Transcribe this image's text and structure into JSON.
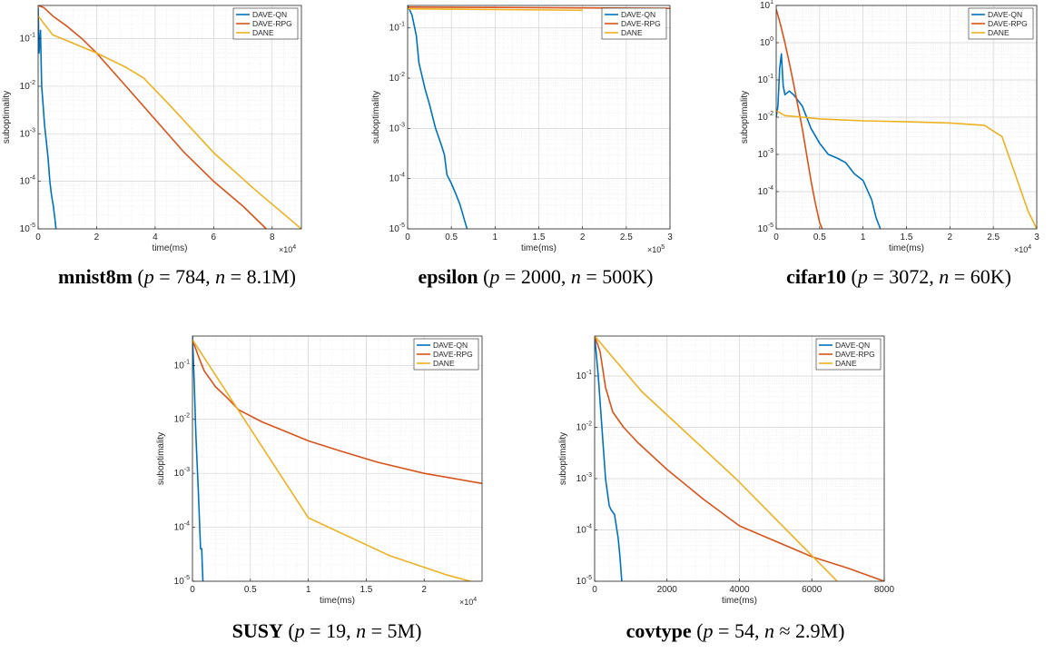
{
  "colors": {
    "DAVE-QN": "#0072BD",
    "DAVE-RPG": "#D95319",
    "DANE": "#EDB120"
  },
  "chart_data": [
    {
      "type": "line",
      "scale": "log-y",
      "dataset": "mnist8m",
      "caption_params": {
        "p": "784",
        "n": "8.1M",
        "rel": "="
      },
      "xlabel": "time(ms)",
      "ylabel": "suboptimality",
      "xlim": [
        0,
        90000
      ],
      "ylim": [
        1e-05,
        0.5
      ],
      "x_multiplier": "×10",
      "x_multiplier_exp": "4",
      "xticks": [
        0,
        20000,
        40000,
        60000,
        80000
      ],
      "xtick_labels": [
        "0",
        "2",
        "4",
        "6",
        "8"
      ],
      "legend": [
        "DAVE-QN",
        "DAVE-RPG",
        "DANE"
      ],
      "legend_position": "top-right",
      "grid": true,
      "series": [
        {
          "name": "DAVE-QN",
          "x": [
            0,
            300,
            800,
            1200,
            1700,
            2200,
            2800,
            3400,
            4000,
            4600,
            5200,
            5800,
            6100
          ],
          "y": [
            0.45,
            0.05,
            0.15,
            0.01,
            0.004,
            0.0015,
            0.0007,
            0.0003,
            0.0001,
            5e-05,
            3e-05,
            1.5e-05,
            1e-05
          ]
        },
        {
          "name": "DAVE-RPG",
          "x": [
            0,
            2000,
            5000,
            10000,
            15000,
            20000,
            30000,
            40000,
            50000,
            60000,
            70000,
            78000
          ],
          "y": [
            0.5,
            0.45,
            0.3,
            0.18,
            0.1,
            0.05,
            0.01,
            0.002,
            0.0004,
            0.0001,
            3e-05,
            1e-05
          ]
        },
        {
          "name": "DANE",
          "x": [
            0,
            1000,
            5000,
            10000,
            20000,
            30000,
            36000,
            45000,
            60000,
            75000,
            90000
          ],
          "y": [
            0.3,
            0.25,
            0.12,
            0.09,
            0.05,
            0.025,
            0.015,
            0.004,
            0.0004,
            6e-05,
            1e-05
          ]
        }
      ]
    },
    {
      "type": "line",
      "scale": "log-y",
      "dataset": "epsilon",
      "caption_params": {
        "p": "2000",
        "n": "500K",
        "rel": "="
      },
      "xlabel": "time(ms)",
      "ylabel": "suboptimality",
      "xlim": [
        0,
        300000
      ],
      "ylim": [
        1e-05,
        0.28
      ],
      "x_multiplier": "×10",
      "x_multiplier_exp": "5",
      "xticks": [
        0,
        50000,
        100000,
        150000,
        200000,
        250000,
        300000
      ],
      "xtick_labels": [
        "0",
        "0.5",
        "1",
        "1.5",
        "2",
        "2.5",
        "3"
      ],
      "legend": [
        "DAVE-QN",
        "DAVE-RPG",
        "DANE"
      ],
      "legend_position": "top-right",
      "grid": true,
      "series": [
        {
          "name": "DAVE-QN",
          "x": [
            0,
            5000,
            10000,
            13000,
            20000,
            25000,
            32000,
            38000,
            42000,
            45000,
            50000,
            55000,
            60000,
            65000,
            68000
          ],
          "y": [
            0.28,
            0.18,
            0.07,
            0.02,
            0.006,
            0.003,
            0.001,
            0.0005,
            0.0003,
            0.00012,
            8e-05,
            5e-05,
            3e-05,
            1.5e-05,
            1e-05
          ]
        },
        {
          "name": "DAVE-RPG",
          "x": [
            0,
            100000,
            200000,
            300000
          ],
          "y": [
            0.26,
            0.255,
            0.25,
            0.245
          ]
        },
        {
          "name": "DANE",
          "x": [
            0,
            100000,
            200000
          ],
          "y": [
            0.24,
            0.232,
            0.225
          ]
        }
      ]
    },
    {
      "type": "line",
      "scale": "log-y",
      "dataset": "cifar10",
      "caption_params": {
        "p": "3072",
        "n": "60K",
        "rel": "="
      },
      "xlabel": "time(ms)",
      "ylabel": "suboptimality",
      "xlim": [
        0,
        30000
      ],
      "ylim": [
        1e-05,
        10
      ],
      "x_multiplier": "×10",
      "x_multiplier_exp": "4",
      "xticks": [
        0,
        5000,
        10000,
        15000,
        20000,
        25000,
        30000
      ],
      "xtick_labels": [
        "0",
        "0.5",
        "1",
        "1.5",
        "2",
        "2.5",
        "3"
      ],
      "legend": [
        "DAVE-QN",
        "DAVE-RPG",
        "DANE"
      ],
      "legend_position": "top-right",
      "grid": true,
      "series": [
        {
          "name": "DAVE-QN",
          "x": [
            0,
            200,
            400,
            600,
            800,
            1000,
            1500,
            2000,
            3000,
            4000,
            5000,
            6000,
            7000,
            8000,
            9000,
            10000,
            11000,
            11500,
            12000
          ],
          "y": [
            0.01,
            0.02,
            0.2,
            0.5,
            0.07,
            0.04,
            0.05,
            0.04,
            0.02,
            0.005,
            0.002,
            0.001,
            0.0008,
            0.0006,
            0.0003,
            0.0002,
            6e-05,
            2e-05,
            1e-05
          ]
        },
        {
          "name": "DAVE-RPG",
          "x": [
            0,
            500,
            1000,
            1500,
            2000,
            2500,
            3000,
            3500,
            4000,
            4500,
            5000,
            5300
          ],
          "y": [
            8,
            3,
            1,
            0.3,
            0.08,
            0.02,
            0.005,
            0.001,
            0.0002,
            5e-05,
            1.5e-05,
            1e-05
          ]
        },
        {
          "name": "DANE",
          "x": [
            0,
            1000,
            3000,
            5000,
            10000,
            15000,
            20000,
            24000,
            26000,
            27500,
            29000,
            30000
          ],
          "y": [
            0.015,
            0.011,
            0.01,
            0.009,
            0.008,
            0.0075,
            0.007,
            0.006,
            0.003,
            0.0003,
            3e-05,
            1e-05
          ]
        }
      ]
    },
    {
      "type": "line",
      "scale": "log-y",
      "dataset": "SUSY",
      "caption_params": {
        "p": "19",
        "n": "5M",
        "rel": "="
      },
      "xlabel": "time(ms)",
      "ylabel": "suboptimality",
      "xlim": [
        0,
        25000
      ],
      "ylim": [
        1e-05,
        0.35
      ],
      "x_multiplier": "×10",
      "x_multiplier_exp": "4",
      "xticks": [
        0,
        5000,
        10000,
        15000,
        20000
      ],
      "xtick_labels": [
        "0",
        "0.5",
        "1",
        "1.5",
        "2"
      ],
      "legend": [
        "DAVE-QN",
        "DAVE-RPG",
        "DANE"
      ],
      "legend_position": "top-right",
      "grid": true,
      "series": [
        {
          "name": "DAVE-QN",
          "x": [
            0,
            150,
            300,
            500,
            700,
            800,
            850,
            900
          ],
          "y": [
            0.35,
            0.05,
            0.005,
            0.0005,
            4e-05,
            4e-05,
            2e-05,
            1e-05
          ]
        },
        {
          "name": "DAVE-RPG",
          "x": [
            0,
            500,
            1000,
            2000,
            3000,
            4000,
            6000,
            8000,
            10000,
            13000,
            16000,
            20000,
            25000
          ],
          "y": [
            0.3,
            0.15,
            0.08,
            0.04,
            0.025,
            0.015,
            0.009,
            0.006,
            0.004,
            0.0025,
            0.0016,
            0.001,
            0.00065
          ]
        },
        {
          "name": "DANE",
          "x": [
            0,
            10000,
            17000,
            22000,
            24000
          ],
          "y": [
            0.3,
            0.00015,
            3e-05,
            1.3e-05,
            1e-05
          ]
        }
      ]
    },
    {
      "type": "line",
      "scale": "log-y",
      "dataset": "covtype",
      "caption_params": {
        "p": "54",
        "n": "2.9M",
        "rel": "≈"
      },
      "xlabel": "time(ms)",
      "ylabel": "suboptimality",
      "xlim": [
        0,
        8000
      ],
      "ylim": [
        1e-05,
        0.6
      ],
      "x_multiplier": "",
      "x_multiplier_exp": "",
      "xticks": [
        0,
        2000,
        4000,
        6000,
        8000
      ],
      "xtick_labels": [
        "0",
        "2000",
        "4000",
        "6000",
        "8000"
      ],
      "legend": [
        "DAVE-QN",
        "DAVE-RPG",
        "DANE"
      ],
      "legend_position": "top-right",
      "grid": true,
      "series": [
        {
          "name": "DAVE-QN",
          "x": [
            0,
            100,
            200,
            300,
            400,
            450,
            550,
            650,
            700,
            750
          ],
          "y": [
            0.6,
            0.1,
            0.01,
            0.001,
            0.0003,
            0.00025,
            0.0002,
            7e-05,
            3e-05,
            1e-05
          ]
        },
        {
          "name": "DAVE-RPG",
          "x": [
            0,
            150,
            300,
            500,
            800,
            1200,
            2000,
            3000,
            4000,
            5000,
            6000,
            7000,
            8000
          ],
          "y": [
            0.6,
            0.3,
            0.06,
            0.02,
            0.01,
            0.005,
            0.0015,
            0.0004,
            0.00012,
            6e-05,
            3e-05,
            1.8e-05,
            1e-05
          ]
        },
        {
          "name": "DANE",
          "x": [
            0,
            1300,
            3900,
            6700
          ],
          "y": [
            0.6,
            0.05,
            0.001,
            1e-05
          ]
        }
      ]
    }
  ]
}
